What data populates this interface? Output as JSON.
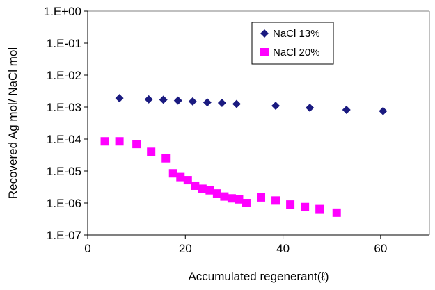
{
  "chart_data": {
    "type": "scatter",
    "title": "",
    "xlabel": "Accumulated regenerant(ℓ)",
    "ylabel": "Recovered Ag mol/ NaCl mol",
    "x_range": [
      0,
      70
    ],
    "x_ticks": [
      0,
      20,
      40,
      60
    ],
    "y_scale": "log",
    "y_range": [
      1e-07,
      1
    ],
    "y_ticks": [
      1,
      0.1,
      0.01,
      0.001,
      0.0001,
      1e-05,
      1e-06,
      1e-07
    ],
    "y_tick_labels": [
      "1.E+00",
      "1.E-01",
      "1.E-02",
      "1.E-03",
      "1.E-04",
      "1.E-05",
      "1.E-06",
      "1.E-07"
    ],
    "grid": false,
    "legend_position": "top-right",
    "series": [
      {
        "name": "NaCl 13%",
        "marker": "diamond",
        "color": "#1a1a80",
        "x": [
          6.5,
          12.5,
          15.5,
          18.5,
          21.5,
          24.5,
          27.5,
          30.5,
          38.5,
          45.5,
          53.0,
          60.5
        ],
        "y": [
          0.0019,
          0.00175,
          0.0017,
          0.0016,
          0.0015,
          0.0014,
          0.00135,
          0.00125,
          0.0011,
          0.00095,
          0.00082,
          0.00075
        ]
      },
      {
        "name": "NaCl 20%",
        "marker": "square",
        "color": "#ff00ff",
        "x": [
          3.5,
          6.5,
          10.0,
          13.0,
          16.0,
          17.5,
          19.0,
          20.5,
          22.0,
          23.5,
          25.0,
          26.5,
          28.0,
          29.5,
          31.0,
          32.5,
          35.5,
          38.5,
          41.5,
          44.5,
          47.5,
          51.0
        ],
        "y": [
          8.5e-05,
          8.5e-05,
          7e-05,
          4e-05,
          2.5e-05,
          8.5e-06,
          6.5e-06,
          5.2e-06,
          3.5e-06,
          2.8e-06,
          2.5e-06,
          2e-06,
          1.6e-06,
          1.4e-06,
          1.3e-06,
          1e-06,
          1.5e-06,
          1.2e-06,
          9e-07,
          7.5e-07,
          6.5e-07,
          5e-07
        ]
      }
    ]
  }
}
